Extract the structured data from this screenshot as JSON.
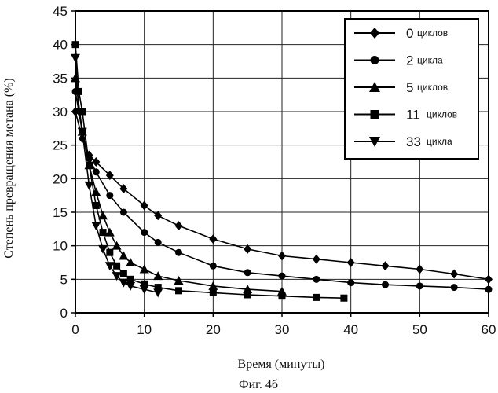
{
  "chart_data": {
    "type": "line",
    "ylabel": "Степень превращения метана (%)",
    "xlabel": "Время (минуты)",
    "caption": "Фиг. 4б",
    "xlim": [
      0,
      60
    ],
    "ylim": [
      0,
      45
    ],
    "x_ticks": [
      "0",
      "10",
      "20",
      "30",
      "40",
      "50",
      "60"
    ],
    "y_ticks": [
      "0",
      "5",
      "10",
      "15",
      "20",
      "25",
      "30",
      "35",
      "40",
      "45"
    ],
    "grid": true,
    "legend_position": "top-right",
    "series": [
      {
        "name": "0 циклов",
        "legend_number": "0",
        "legend_word": "циклов",
        "marker": "diamond",
        "x": [
          0,
          1,
          2,
          3,
          5,
          7,
          10,
          12,
          15,
          20,
          25,
          30,
          35,
          40,
          45,
          50,
          55,
          60
        ],
        "y": [
          30,
          26,
          23.5,
          22.5,
          20.5,
          18.5,
          16,
          14.5,
          13,
          11,
          9.5,
          8.5,
          8,
          7.5,
          7,
          6.5,
          5.8,
          5
        ]
      },
      {
        "name": "2 цикла",
        "legend_number": "2",
        "legend_word": "цикла",
        "marker": "circle",
        "x": [
          0,
          1,
          2,
          3,
          5,
          7,
          10,
          12,
          15,
          20,
          25,
          30,
          35,
          40,
          45,
          50,
          55,
          60
        ],
        "y": [
          33,
          27,
          23,
          21,
          17.5,
          15,
          12,
          10.5,
          9,
          7,
          6,
          5.5,
          5,
          4.5,
          4.2,
          4,
          3.8,
          3.5
        ]
      },
      {
        "name": "5 циклов",
        "legend_number": "5",
        "legend_word": "циклов",
        "marker": "triangle-up",
        "x": [
          0,
          1,
          2,
          3,
          4,
          5,
          6,
          7,
          8,
          10,
          12,
          15,
          20,
          25,
          30
        ],
        "y": [
          35,
          27,
          22,
          18,
          14.5,
          12,
          10,
          8.5,
          7.5,
          6.5,
          5.5,
          4.8,
          4,
          3.5,
          3.2
        ]
      },
      {
        "name": "11 циклов",
        "legend_number": "11",
        "legend_word": "циклов",
        "marker": "square",
        "x": [
          0,
          0.5,
          1,
          2,
          3,
          4,
          5,
          6,
          7,
          8,
          10,
          12,
          15,
          20,
          25,
          30,
          35,
          39
        ],
        "y": [
          40,
          33,
          30,
          22,
          16,
          12,
          9,
          7,
          5.8,
          5,
          4.3,
          3.8,
          3.3,
          3,
          2.7,
          2.5,
          2.3,
          2.2
        ]
      },
      {
        "name": "33 цикла",
        "legend_number": "33",
        "legend_word": "цикла",
        "marker": "triangle-down",
        "x": [
          0,
          0.5,
          1,
          2,
          3,
          4,
          5,
          6,
          7,
          8,
          10,
          12
        ],
        "y": [
          38,
          30,
          27,
          19,
          13,
          9.5,
          7,
          5.5,
          4.5,
          4,
          3.5,
          3
        ]
      }
    ]
  }
}
